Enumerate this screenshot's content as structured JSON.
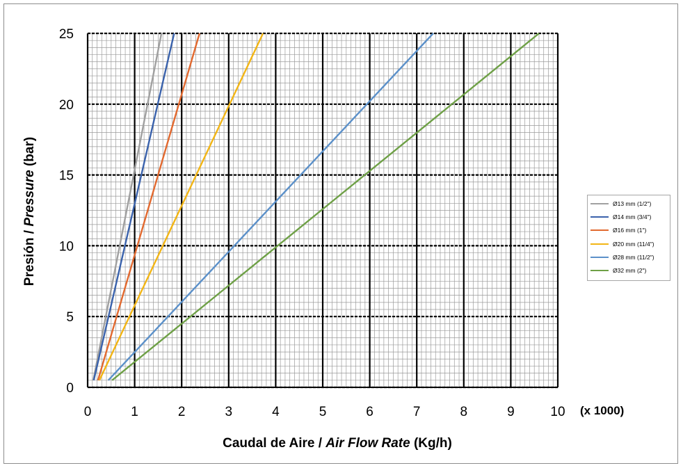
{
  "chart_data": {
    "type": "line",
    "xlabel_plain": "Caudal de Aire / ",
    "xlabel_italic": "Air Flow Rate",
    "xlabel_unit": " (Kg/h)",
    "ylabel_plain": "Presión / ",
    "ylabel_italic": "Pressure",
    "ylabel_unit": " (bar)",
    "x_multiplier_label": "(x 1000)",
    "xlim": [
      0,
      10
    ],
    "ylim": [
      0,
      25
    ],
    "xticks": [
      "0",
      "1",
      "2",
      "3",
      "4",
      "5",
      "6",
      "7",
      "8",
      "9",
      "10"
    ],
    "yticks": [
      "0",
      "5",
      "10",
      "15",
      "20",
      "25"
    ],
    "major_x_step": 1,
    "major_y_step": 5,
    "minor_x_step": 0.1,
    "minor_y_step": 0.5,
    "grid": true,
    "legend_position": "right",
    "series": [
      {
        "name": "Ø13 mm (1/2\")",
        "color": "#a0a0a0",
        "x": [
          0.12,
          1.57
        ],
        "y": [
          0.5,
          25
        ]
      },
      {
        "name": "Ø14 mm (3/4\")",
        "color": "#3a62ac",
        "x": [
          0.13,
          1.84
        ],
        "y": [
          0.5,
          25
        ]
      },
      {
        "name": "Ø16 mm (1\")",
        "color": "#e2692f",
        "x": [
          0.22,
          2.38
        ],
        "y": [
          0.5,
          25
        ]
      },
      {
        "name": "Ø20 mm (11/4\")",
        "color": "#f2b515",
        "x": [
          0.25,
          3.73
        ],
        "y": [
          0.5,
          25
        ]
      },
      {
        "name": "Ø28 mm (11/2\")",
        "color": "#5b90c9",
        "x": [
          0.44,
          7.35
        ],
        "y": [
          0.5,
          25
        ]
      },
      {
        "name": "Ø32 mm (2\")",
        "color": "#6ea046",
        "x": [
          0.52,
          9.6
        ],
        "y": [
          0.5,
          25
        ]
      }
    ]
  }
}
